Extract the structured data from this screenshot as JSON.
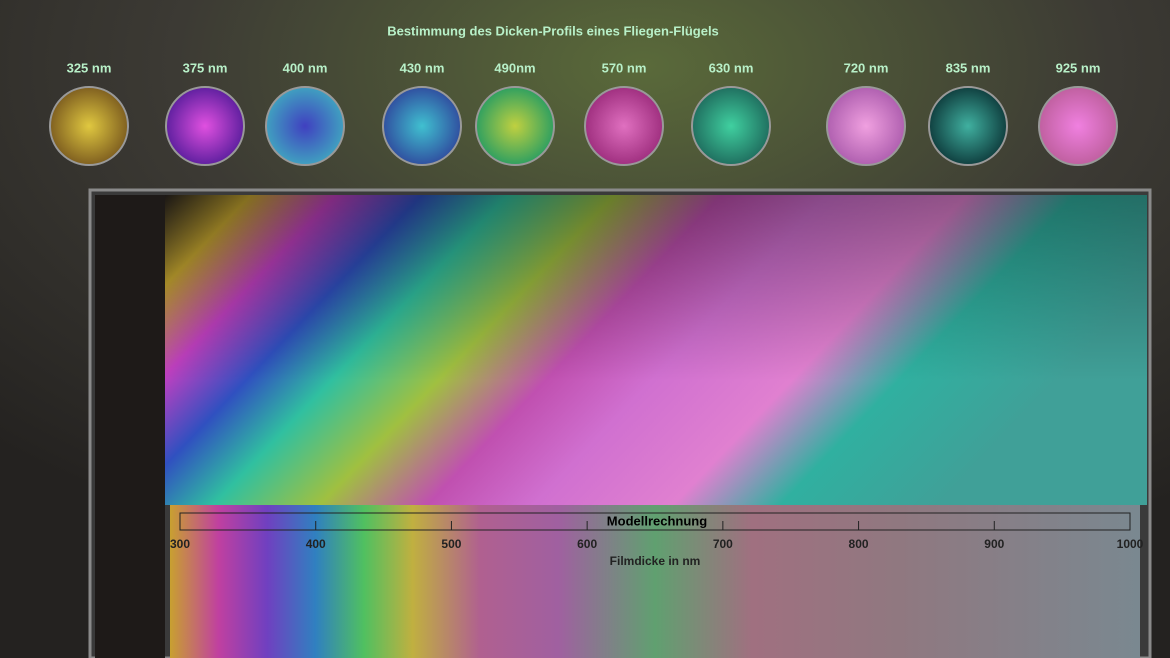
{
  "title": "Bestimmung des Dicken-Profils eines Fliegen-Flügels",
  "samples": [
    "325 nm",
    "375 nm",
    "400 nm",
    "430 nm",
    "490nm",
    "570 nm",
    "630 nm",
    "720 nm",
    "835 nm",
    "925 nm"
  ],
  "scale": {
    "title": "Modellrechnung",
    "label": "Filmdicke in nm",
    "ticks": [
      300,
      400,
      500,
      600,
      700,
      800,
      900,
      1000
    ]
  }
}
